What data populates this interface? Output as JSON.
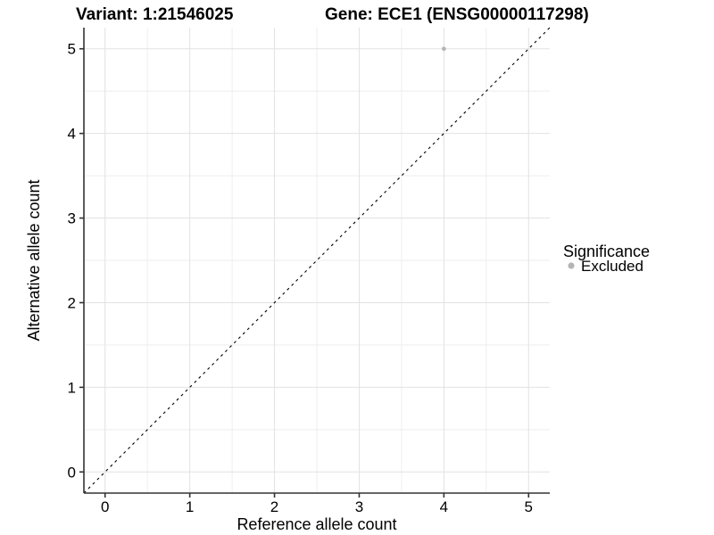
{
  "chart_data": {
    "type": "scatter",
    "title_left": "Variant: 1:21546025",
    "title_right": "Gene: ECE1 (ENSG00000117298)",
    "xlabel": "Reference allele count",
    "ylabel": "Alternative allele count",
    "xlim": [
      -0.25,
      5.25
    ],
    "ylim": [
      -0.25,
      5.25
    ],
    "x_ticks": [
      0,
      1,
      2,
      3,
      4,
      5
    ],
    "y_ticks": [
      0,
      1,
      2,
      3,
      4,
      5
    ],
    "x_minor_ticks": [
      0.5,
      1.5,
      2.5,
      3.5,
      4.5
    ],
    "y_minor_ticks": [
      0.5,
      1.5,
      2.5,
      3.5,
      4.5
    ],
    "grid": "major-and-minor",
    "identity_line": {
      "style": "dashed",
      "x1": -0.25,
      "y1": -0.25,
      "x2": 5.25,
      "y2": 5.25
    },
    "series": [
      {
        "name": "Excluded",
        "color": "#b5b5b5",
        "points": [
          {
            "x": 4,
            "y": 5
          }
        ]
      }
    ],
    "legend": {
      "title": "Significance",
      "position": "right",
      "items": [
        {
          "label": "Excluded",
          "color": "#b5b5b5"
        }
      ]
    },
    "colors": {
      "background": "#ffffff",
      "text": "#000000",
      "axis_line": "#333333",
      "grid_major": "#e2e2e2",
      "grid_minor": "#eeeeee",
      "dashed_line": "#000000",
      "point": "#b5b5b5"
    }
  },
  "layout_note": "single scatter panel with right-side legend"
}
